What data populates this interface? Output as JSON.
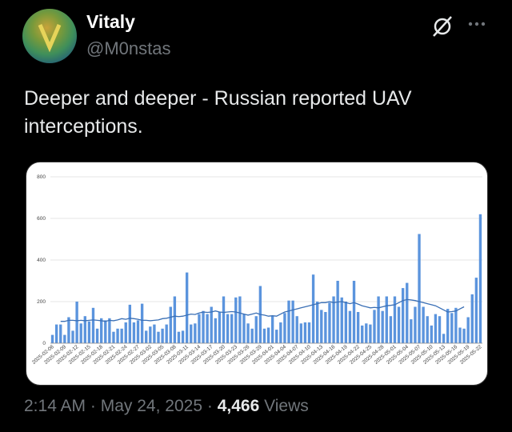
{
  "author": {
    "name": "Vitaly",
    "handle": "@M0nstas"
  },
  "post": {
    "text": "Deeper and deeper - Russian reported UAV interceptions."
  },
  "chart_data": {
    "type": "bar",
    "categories": [
      "2025-02-06",
      null,
      null,
      "2025-02-09",
      null,
      null,
      "2025-02-12",
      null,
      null,
      "2025-02-15",
      null,
      null,
      "2025-02-18",
      null,
      null,
      "2025-02-21",
      null,
      null,
      "2025-02-24",
      null,
      null,
      "2025-02-27",
      null,
      null,
      "2025-03-02",
      null,
      null,
      "2025-03-05",
      null,
      null,
      "2025-03-08",
      null,
      null,
      "2025-03-11",
      null,
      null,
      "2025-03-14",
      null,
      null,
      "2025-03-17",
      null,
      null,
      "2025-03-20",
      null,
      null,
      "2025-03-23",
      null,
      null,
      "2025-03-26",
      null,
      null,
      "2025-03-29",
      null,
      null,
      "2025-04-01",
      null,
      null,
      "2025-04-04",
      null,
      null,
      "2025-04-07",
      null,
      null,
      "2025-04-10",
      null,
      null,
      "2025-04-13",
      null,
      null,
      "2025-04-16",
      null,
      null,
      "2025-04-19",
      null,
      null,
      "2025-04-22",
      null,
      null,
      "2025-04-25",
      null,
      null,
      "2025-04-28",
      null,
      null,
      "2025-05-01",
      null,
      null,
      "2025-05-04",
      null,
      null,
      "2025-05-07",
      null,
      null,
      "2025-05-10",
      null,
      null,
      "2025-05-13",
      null,
      null,
      "2025-05-16",
      null,
      null,
      "2025-05-19",
      null,
      null,
      "2025-05-22"
    ],
    "series": [
      {
        "type": "bar",
        "color": "#5b94dd",
        "values": [
          40,
          90,
          90,
          40,
          125,
          60,
          200,
          95,
          130,
          105,
          170,
          70,
          120,
          110,
          120,
          55,
          70,
          70,
          100,
          185,
          100,
          110,
          190,
          60,
          80,
          90,
          55,
          70,
          90,
          175,
          225,
          55,
          60,
          340,
          90,
          95,
          140,
          155,
          140,
          175,
          120,
          150,
          225,
          140,
          140,
          220,
          225,
          140,
          95,
          70,
          130,
          275,
          70,
          75,
          130,
          65,
          100,
          145,
          205,
          205,
          130,
          95,
          100,
          100,
          330,
          200,
          160,
          150,
          195,
          225,
          300,
          220,
          200,
          155,
          300,
          150,
          85,
          95,
          90,
          160,
          225,
          155,
          225,
          130,
          225,
          175,
          265,
          290,
          115,
          175,
          525,
          175,
          130,
          85,
          140,
          130,
          45,
          165,
          145,
          170,
          75,
          70,
          125,
          235,
          315,
          620
        ]
      },
      {
        "type": "line",
        "color": "#3a6fb5",
        "values": [
          null,
          null,
          105,
          105,
          110,
          110,
          108,
          110,
          108,
          110,
          112,
          110,
          108,
          105,
          110,
          108,
          112,
          118,
          115,
          120,
          118,
          115,
          110,
          110,
          108,
          110,
          112,
          118,
          120,
          125,
          130,
          128,
          130,
          135,
          140,
          138,
          145,
          150,
          148,
          150,
          155,
          150,
          148,
          150,
          152,
          150,
          145,
          140,
          135,
          140,
          145,
          138,
          135,
          130,
          132,
          130,
          140,
          150,
          155,
          160,
          165,
          170,
          175,
          180,
          185,
          190,
          195,
          195,
          200,
          195,
          198,
          200,
          195,
          190,
          195,
          188,
          180,
          175,
          170,
          172,
          170,
          175,
          180,
          182,
          185,
          195,
          205,
          210,
          208,
          205,
          200,
          195,
          190,
          185,
          180,
          170,
          160,
          150,
          152,
          155,
          165,
          175,
          null,
          null,
          null,
          null
        ]
      }
    ],
    "ylim": [
      0,
      800
    ],
    "yticks": [
      0,
      200,
      400,
      600,
      800
    ],
    "grid": true
  },
  "footer": {
    "time": "2:14 AM",
    "separator": "·",
    "date": "May 24, 2025",
    "views_count": "4,466",
    "views_label": "Views"
  }
}
